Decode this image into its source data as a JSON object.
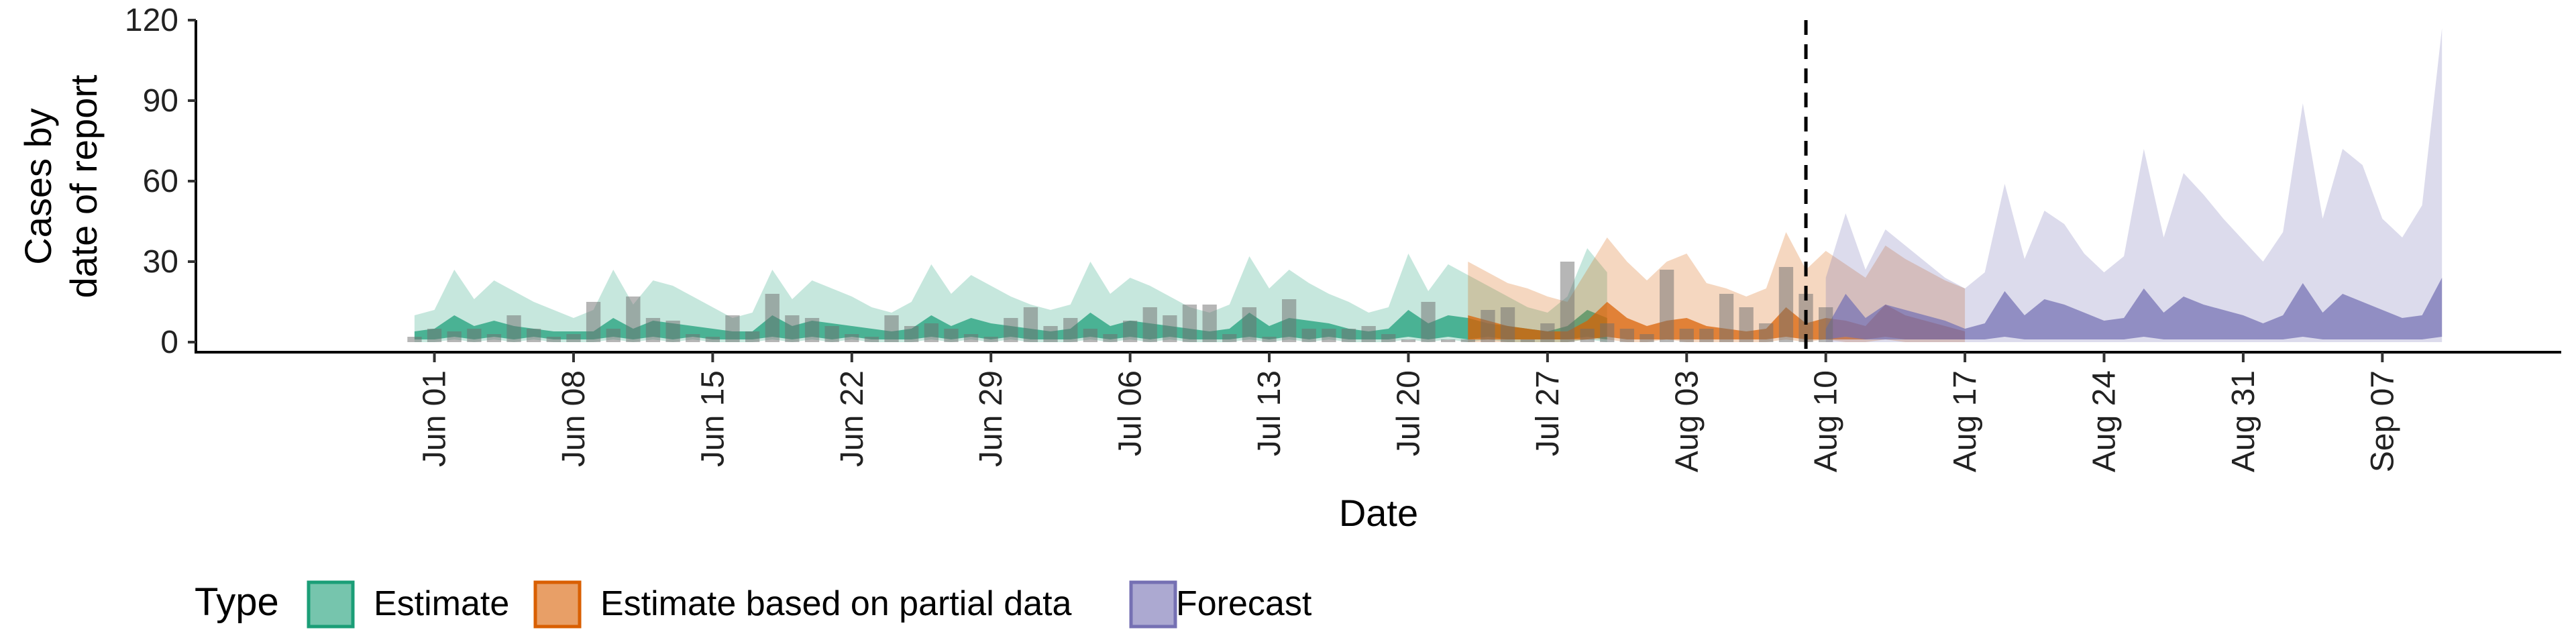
{
  "chart_data": {
    "type": "area",
    "title": "",
    "xlabel": "Date",
    "ylabel_lines": [
      "Cases by",
      "date of report"
    ],
    "ylim": [
      0,
      120
    ],
    "yticks": [
      0,
      30,
      60,
      90,
      120
    ],
    "xlim": [
      "2021-05-20",
      "2021-09-16"
    ],
    "xticks": [
      {
        "date": "2021-06-01",
        "label": "Jun 01"
      },
      {
        "date": "2021-06-08",
        "label": "Jun 08"
      },
      {
        "date": "2021-06-15",
        "label": "Jun 15"
      },
      {
        "date": "2021-06-22",
        "label": "Jun 22"
      },
      {
        "date": "2021-06-29",
        "label": "Jun 29"
      },
      {
        "date": "2021-07-06",
        "label": "Jul 06"
      },
      {
        "date": "2021-07-13",
        "label": "Jul 13"
      },
      {
        "date": "2021-07-20",
        "label": "Jul 20"
      },
      {
        "date": "2021-07-27",
        "label": "Jul 27"
      },
      {
        "date": "2021-08-03",
        "label": "Aug 03"
      },
      {
        "date": "2021-08-10",
        "label": "Aug 10"
      },
      {
        "date": "2021-08-17",
        "label": "Aug 17"
      },
      {
        "date": "2021-08-24",
        "label": "Aug 24"
      },
      {
        "date": "2021-08-31",
        "label": "Aug 31"
      },
      {
        "date": "2021-09-07",
        "label": "Sep 07"
      }
    ],
    "vline_date": "2021-08-09",
    "grid": false,
    "legend": {
      "title": "Type",
      "placement": "bottom-left"
    },
    "series": [
      {
        "name": "Estimate",
        "color": "#1b9e77",
        "start_date": "2021-05-31",
        "outer_upper": [
          10,
          12,
          27,
          16,
          23,
          19,
          15,
          12,
          9,
          12,
          27,
          14,
          23,
          21,
          17,
          13,
          9,
          11,
          27,
          16,
          23,
          20,
          17,
          13,
          11,
          15,
          29,
          18,
          25,
          21,
          17,
          14,
          12,
          14,
          30,
          18,
          24,
          21,
          17,
          13,
          11,
          14,
          32,
          20,
          27,
          22,
          18,
          15,
          11,
          13,
          33,
          19,
          29,
          25,
          21,
          17,
          13,
          11,
          17,
          35,
          26
        ],
        "outer_lower": [
          0,
          0,
          1,
          0,
          1,
          0,
          1,
          0,
          0,
          0,
          1,
          0,
          1,
          0,
          1,
          0,
          0,
          0,
          1,
          0,
          1,
          0,
          1,
          0,
          0,
          0,
          1,
          0,
          1,
          0,
          1,
          0,
          0,
          0,
          1,
          0,
          1,
          0,
          1,
          0,
          0,
          0,
          1,
          0,
          1,
          0,
          1,
          0,
          0,
          0,
          1,
          0,
          1,
          0,
          1,
          0,
          0,
          0,
          0,
          1,
          0
        ],
        "inner_upper": [
          4,
          5,
          10,
          6,
          8,
          6,
          5,
          4,
          4,
          4,
          9,
          5,
          8,
          7,
          6,
          5,
          4,
          4,
          10,
          6,
          8,
          7,
          6,
          5,
          4,
          5,
          10,
          6,
          9,
          7,
          6,
          5,
          4,
          5,
          11,
          6,
          8,
          7,
          6,
          5,
          4,
          5,
          11,
          6,
          9,
          8,
          7,
          5,
          4,
          5,
          12,
          7,
          10,
          9,
          7,
          6,
          5,
          4,
          6,
          12,
          9
        ],
        "inner_lower": [
          1,
          1,
          2,
          1,
          2,
          1,
          2,
          1,
          1,
          1,
          2,
          1,
          2,
          1,
          2,
          1,
          1,
          1,
          2,
          1,
          2,
          1,
          2,
          1,
          1,
          1,
          2,
          1,
          2,
          1,
          2,
          1,
          1,
          1,
          2,
          1,
          2,
          1,
          2,
          1,
          1,
          1,
          2,
          1,
          2,
          1,
          2,
          1,
          1,
          1,
          2,
          1,
          2,
          1,
          2,
          1,
          1,
          1,
          1,
          2,
          1
        ]
      },
      {
        "name": "Estimate based on partial data",
        "color": "#d95f02",
        "start_date": "2021-07-23",
        "outer_upper": [
          30,
          26,
          22,
          20,
          17,
          15,
          27,
          39,
          30,
          23,
          30,
          33,
          22,
          20,
          17,
          20,
          41,
          27,
          34,
          29,
          24,
          36,
          31,
          27,
          23,
          20
        ],
        "outer_lower": [
          0,
          0,
          0,
          0,
          0,
          0,
          1,
          1,
          0,
          0,
          1,
          0,
          0,
          0,
          0,
          0,
          1,
          0,
          1,
          0,
          0,
          1,
          0,
          0,
          0,
          0
        ],
        "inner_upper": [
          10,
          8,
          6,
          5,
          4,
          4,
          8,
          15,
          9,
          6,
          8,
          9,
          6,
          5,
          4,
          5,
          13,
          7,
          9,
          8,
          6,
          14,
          10,
          8,
          6,
          4
        ],
        "inner_lower": [
          1,
          1,
          1,
          1,
          1,
          1,
          1,
          2,
          1,
          1,
          1,
          1,
          1,
          1,
          1,
          1,
          2,
          1,
          1,
          1,
          1,
          2,
          1,
          1,
          1,
          1
        ]
      },
      {
        "name": "Forecast",
        "color": "#7570b3",
        "start_date": "2021-08-10",
        "outer_upper": [
          24,
          48,
          27,
          42,
          36,
          30,
          24,
          20,
          26,
          59,
          31,
          49,
          44,
          33,
          26,
          32,
          72,
          39,
          63,
          55,
          46,
          38,
          30,
          41,
          89,
          46,
          72,
          66,
          46,
          39,
          51,
          117
        ],
        "outer_lower": [
          0,
          0,
          0,
          0,
          0,
          0,
          0,
          0,
          0,
          0,
          0,
          0,
          0,
          0,
          0,
          0,
          0,
          0,
          0,
          0,
          0,
          0,
          0,
          0,
          0,
          0,
          0,
          0,
          0,
          0,
          0,
          0
        ],
        "inner_upper": [
          5,
          18,
          9,
          14,
          12,
          10,
          8,
          5,
          7,
          19,
          10,
          16,
          14,
          11,
          8,
          9,
          20,
          11,
          17,
          14,
          12,
          10,
          7,
          10,
          22,
          11,
          18,
          15,
          12,
          9,
          10,
          24
        ],
        "inner_lower": [
          1,
          2,
          1,
          1,
          1,
          1,
          1,
          1,
          1,
          2,
          1,
          1,
          1,
          1,
          1,
          1,
          2,
          1,
          1,
          1,
          1,
          1,
          1,
          1,
          2,
          1,
          1,
          1,
          1,
          1,
          1,
          2
        ]
      }
    ],
    "observed_bars": {
      "color": "#6e6e6e",
      "start_date": "2021-05-31",
      "values": [
        2,
        5,
        4,
        5,
        3,
        10,
        5,
        2,
        3,
        15,
        5,
        17,
        9,
        8,
        3,
        2,
        10,
        4,
        18,
        10,
        9,
        6,
        3,
        2,
        10,
        6,
        7,
        5,
        3,
        2,
        9,
        13,
        6,
        9,
        5,
        3,
        8,
        13,
        10,
        14,
        14,
        3,
        13,
        2,
        16,
        5,
        5,
        5,
        6,
        3,
        1,
        15,
        1,
        1,
        12,
        13,
        1,
        7,
        30,
        5,
        7,
        5,
        3,
        27,
        5,
        5,
        18,
        13,
        7,
        28,
        18,
        13
      ]
    }
  }
}
